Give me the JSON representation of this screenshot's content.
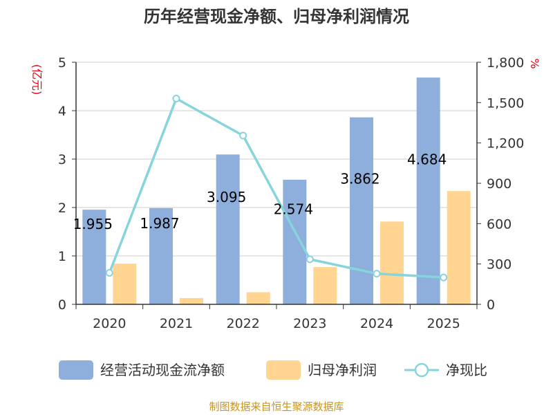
{
  "chart_data": {
    "type": "bar",
    "title": "历年经营现金净额、归母净利润情况",
    "categories": [
      "2020",
      "2021",
      "2022",
      "2023",
      "2024",
      "2025"
    ],
    "series": [
      {
        "name": "经营活动现金流净额",
        "type": "bar",
        "axis": "left",
        "color": "#8eaedb",
        "values": [
          1.955,
          1.987,
          3.095,
          2.574,
          3.862,
          4.684
        ],
        "labels": [
          "1.955",
          "1.987",
          "3.095",
          "2.574",
          "3.862",
          "4.684"
        ]
      },
      {
        "name": "归母净利润",
        "type": "bar",
        "axis": "left",
        "color": "#ffd591",
        "values": [
          0.84,
          0.13,
          0.25,
          0.77,
          1.71,
          2.34
        ]
      },
      {
        "name": "净现比",
        "type": "line",
        "axis": "right",
        "color": "#86d4dc",
        "values": [
          234,
          1530,
          1255,
          335,
          228,
          200
        ]
      }
    ],
    "y_left": {
      "unit": "(亿元)",
      "ylim": [
        0,
        5
      ],
      "ticks": [
        "0",
        "1",
        "2",
        "3",
        "4",
        "5"
      ]
    },
    "y_right": {
      "unit": "%",
      "ylim": [
        0,
        1800
      ],
      "ticks": [
        "0",
        "300",
        "600",
        "900",
        "1,200",
        "1,500",
        "1,800"
      ]
    },
    "grid": true,
    "legend_position": "bottom"
  },
  "source": "制图数据来自恒生聚源数据库"
}
